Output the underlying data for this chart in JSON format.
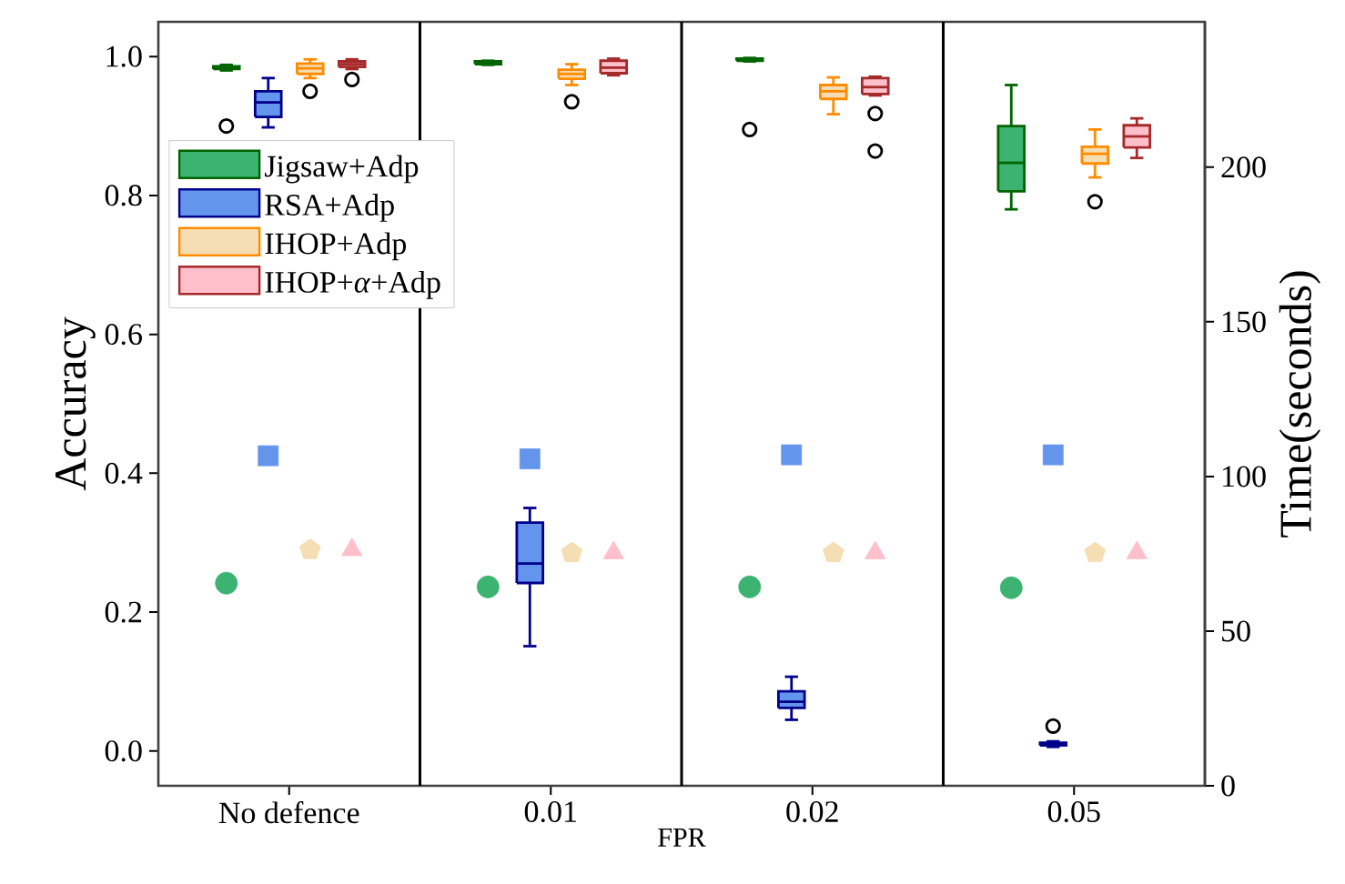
{
  "chart_data": {
    "type": "box",
    "xlabel": "FPR",
    "ylabel": "Accuracy",
    "y2label": "Time(seconds)",
    "categories": [
      "No defence",
      "0.01",
      "0.02",
      "0.05"
    ],
    "ylim": [
      -0.05,
      1.05
    ],
    "yticks": [
      {
        "value": 0,
        "label": "0.0"
      },
      {
        "value": 0.2,
        "label": "0.2"
      },
      {
        "value": 0.4,
        "label": "0.4"
      },
      {
        "value": 0.6,
        "label": "0.6"
      },
      {
        "value": 0.8,
        "label": "0.8"
      },
      {
        "value": 1,
        "label": "1.0"
      }
    ],
    "y2lim": [
      0,
      247
    ],
    "y2ticks": [
      0,
      50,
      100,
      150,
      200
    ],
    "legend": "top left",
    "series": [
      {
        "name": "Jigsaw+Adp",
        "color": "#006400",
        "boxes": [
          {
            "low": 0.98,
            "q1": 0.982,
            "median": 0.984,
            "q3": 0.986,
            "high": 0.988,
            "outliers": [
              0.9
            ]
          },
          {
            "low": 0.988,
            "q1": 0.989,
            "median": 0.991,
            "q3": 0.993,
            "high": 0.994
          },
          {
            "low": 0.993,
            "q1": 0.994,
            "median": 0.996,
            "q3": 0.997,
            "high": 0.998,
            "outliers": [
              0.895
            ]
          },
          {
            "low": 0.78,
            "q1": 0.806,
            "median": 0.847,
            "q3": 0.9,
            "high": 0.959
          }
        ]
      },
      {
        "name": "RSA+Adp",
        "color": "#00008b",
        "boxes": [
          {
            "low": 0.898,
            "q1": 0.913,
            "median": 0.934,
            "q3": 0.95,
            "high": 0.969
          },
          {
            "low": 0.151,
            "q1": 0.242,
            "median": 0.27,
            "q3": 0.329,
            "high": 0.35
          },
          {
            "low": 0.045,
            "q1": 0.062,
            "median": 0.071,
            "q3": 0.086,
            "high": 0.107
          },
          {
            "low": 0.006,
            "q1": 0.008,
            "median": 0.01,
            "q3": 0.012,
            "high": 0.014,
            "outliers": [
              0.036
            ]
          }
        ]
      },
      {
        "name": "IHOP+Adp",
        "color": "#ff8c00",
        "boxes": [
          {
            "low": 0.969,
            "q1": 0.975,
            "median": 0.983,
            "q3": 0.99,
            "high": 0.996,
            "outliers": [
              0.95
            ]
          },
          {
            "low": 0.959,
            "q1": 0.968,
            "median": 0.975,
            "q3": 0.981,
            "high": 0.989,
            "outliers": [
              0.935
            ]
          },
          {
            "low": 0.917,
            "q1": 0.939,
            "median": 0.95,
            "q3": 0.959,
            "high": 0.97
          },
          {
            "low": 0.826,
            "q1": 0.846,
            "median": 0.86,
            "q3": 0.87,
            "high": 0.895,
            "outliers": [
              0.791
            ]
          }
        ]
      },
      {
        "name": "IHOP+*α*+Adp",
        "color": "#a52a2a",
        "boxes": [
          {
            "low": 0.982,
            "q1": 0.985,
            "median": 0.989,
            "q3": 0.993,
            "high": 0.996,
            "outliers": [
              0.967
            ]
          },
          {
            "low": 0.973,
            "q1": 0.976,
            "median": 0.984,
            "q3": 0.994,
            "high": 0.997
          },
          {
            "low": 0.944,
            "q1": 0.946,
            "median": 0.956,
            "q3": 0.969,
            "high": 0.971,
            "outliers": [
              0.918,
              0.864
            ]
          },
          {
            "low": 0.854,
            "q1": 0.869,
            "median": 0.885,
            "q3": 0.901,
            "high": 0.911
          }
        ]
      },
      {
        "type": "scatter",
        "axis": "y2",
        "color": "#3cb371",
        "marker": "circle",
        "values": [
          65.5,
          64.3,
          64.3,
          64
        ]
      },
      {
        "type": "scatter",
        "axis": "y2",
        "color": "#6495ed",
        "marker": "square",
        "values": [
          106.7,
          105.7,
          107,
          107
        ]
      },
      {
        "type": "scatter",
        "axis": "y2",
        "color": "#f5deb3",
        "values": [
          76.3,
          75.3,
          75.3,
          75.3
        ]
      },
      {
        "type": "scatter",
        "axis": "y2",
        "color": "#ffc0cb",
        "marker": "triangle",
        "values": [
          76.3,
          75.3,
          75.3,
          75.3
        ]
      }
    ]
  }
}
